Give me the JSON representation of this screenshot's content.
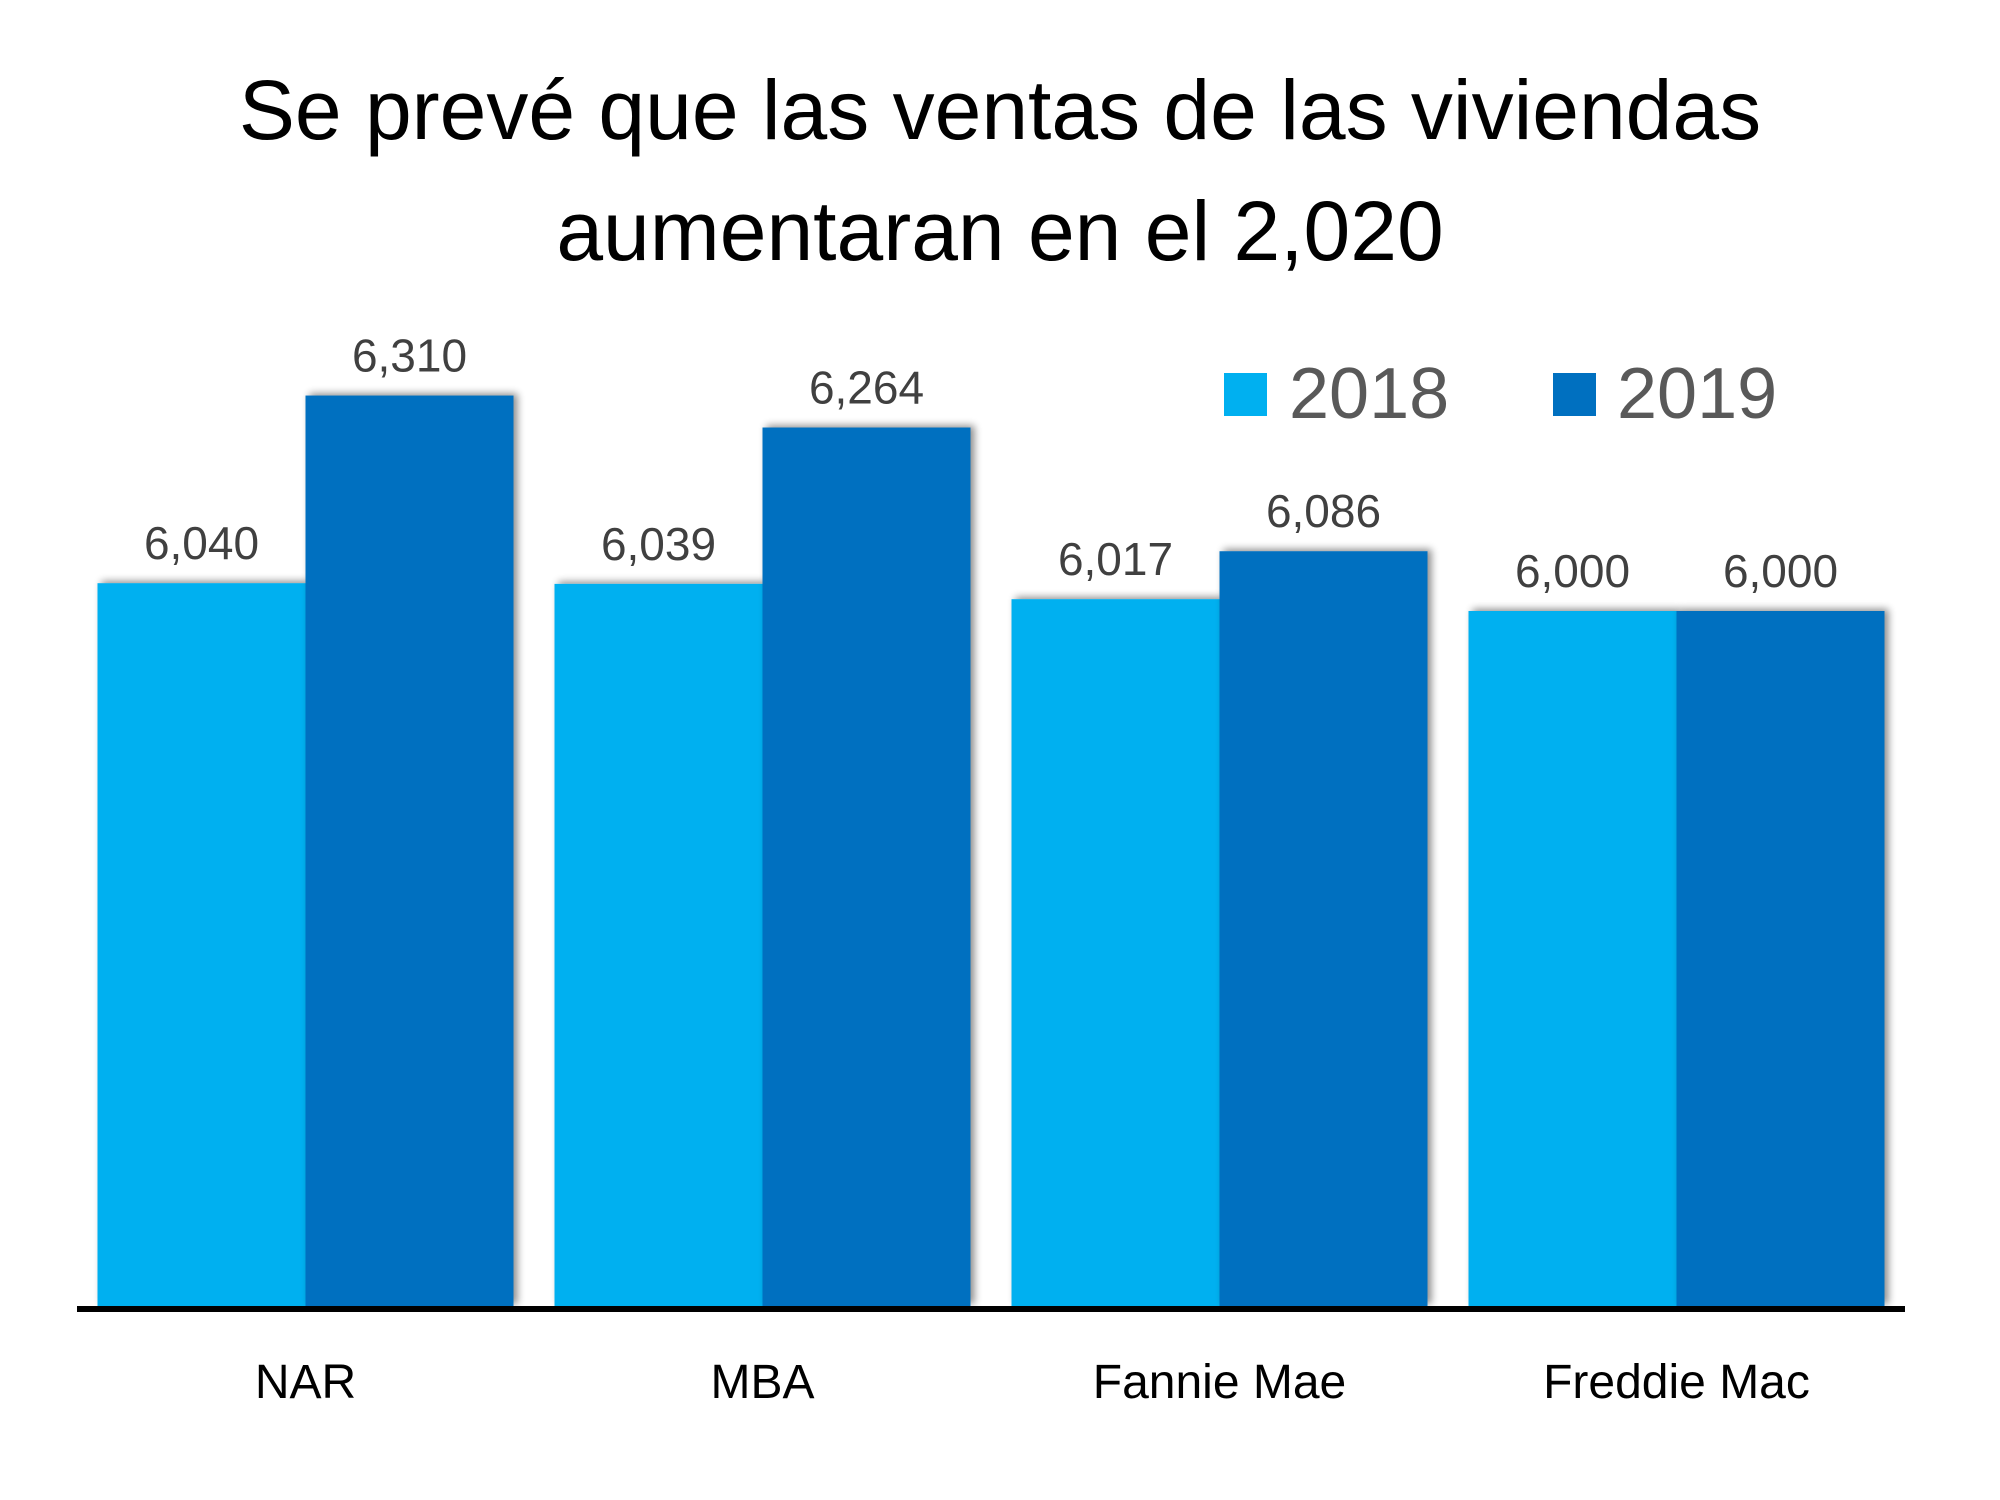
{
  "chart_data": {
    "type": "bar",
    "title_lines": [
      "Se prevé que las ventas de las viviendas",
      "aumentaran en el 2,020"
    ],
    "categories": [
      "NAR",
      "MBA",
      "Fannie Mae",
      "Freddie Mac"
    ],
    "series": [
      {
        "name": "2018",
        "color": "#00B0F0",
        "values": [
          6040,
          6039,
          6017,
          6000
        ],
        "labels": [
          "6,040",
          "6,039",
          "6,017",
          "6,000"
        ]
      },
      {
        "name": "2019",
        "color": "#0070C0",
        "values": [
          6310,
          6264,
          6086,
          6000
        ],
        "labels": [
          "6,310",
          "6,264",
          "6,086",
          "6,000"
        ]
      }
    ],
    "xlabel": "",
    "ylabel": "",
    "ylim": [
      5000,
      6800
    ],
    "grid": false,
    "legend": "top-right",
    "axis_color": "#000000"
  }
}
